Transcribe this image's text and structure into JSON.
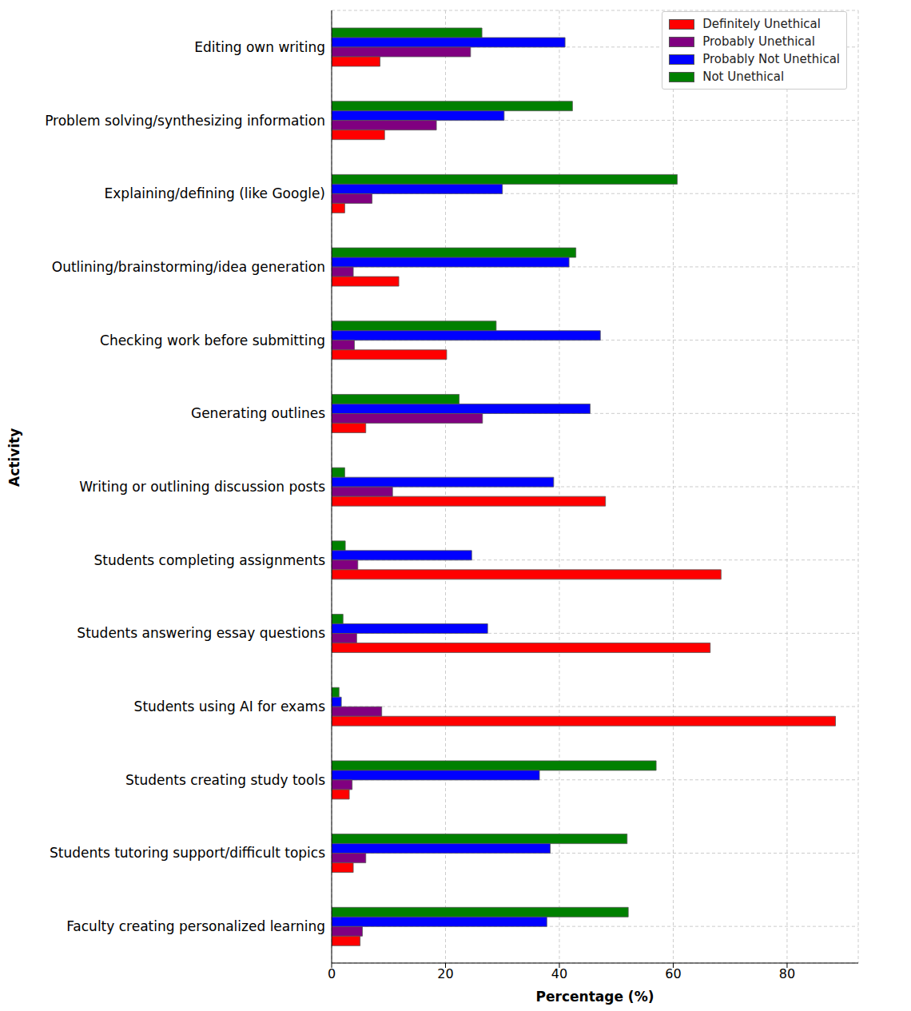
{
  "chart_data": {
    "type": "bar",
    "orientation": "horizontal",
    "x_label": "Percentage (%)",
    "y_label": "Activity",
    "categories": [
      "Editing own writing",
      "Problem solving/synthesizing information",
      "Explaining/defining (like Google)",
      "Outlining/brainstorming/idea generation",
      "Checking work before submitting",
      "Generating outlines",
      "Writing or outlining discussion posts",
      "Students completing assignments",
      "Students answering essay questions",
      "Students using AI for exams",
      "Students creating study tools",
      "Students tutoring support/difficult topics",
      "Faculty creating personalized learning"
    ],
    "series": [
      {
        "name": "Definitely Unethical",
        "color": "#ff0000",
        "values": [
          8.5,
          9.3,
          2.3,
          11.8,
          20.2,
          6,
          48.1,
          68.4,
          66.5,
          88.5,
          3.1,
          3.8,
          5
        ]
      },
      {
        "name": "Probably Unethical",
        "color": "#800080",
        "values": [
          24.4,
          18.4,
          7.1,
          3.8,
          4,
          26.5,
          10.7,
          4.6,
          4.4,
          8.8,
          3.6,
          6,
          5.4
        ]
      },
      {
        "name": "Probably Not Unethical",
        "color": "#0000ff",
        "values": [
          41,
          30.3,
          30,
          41.7,
          47.2,
          45.4,
          39,
          24.6,
          27.4,
          1.7,
          36.5,
          38.4,
          37.8
        ]
      },
      {
        "name": "Not Unethical",
        "color": "#008000",
        "values": [
          26.4,
          42.3,
          60.7,
          42.9,
          28.9,
          22.4,
          2.3,
          2.4,
          2,
          1.3,
          57,
          51.9,
          52.1
        ]
      }
    ],
    "xlim": [
      0,
      92.5
    ],
    "xticks": [
      0,
      20,
      40,
      60,
      80
    ],
    "grid": true,
    "legend": "upper right"
  }
}
